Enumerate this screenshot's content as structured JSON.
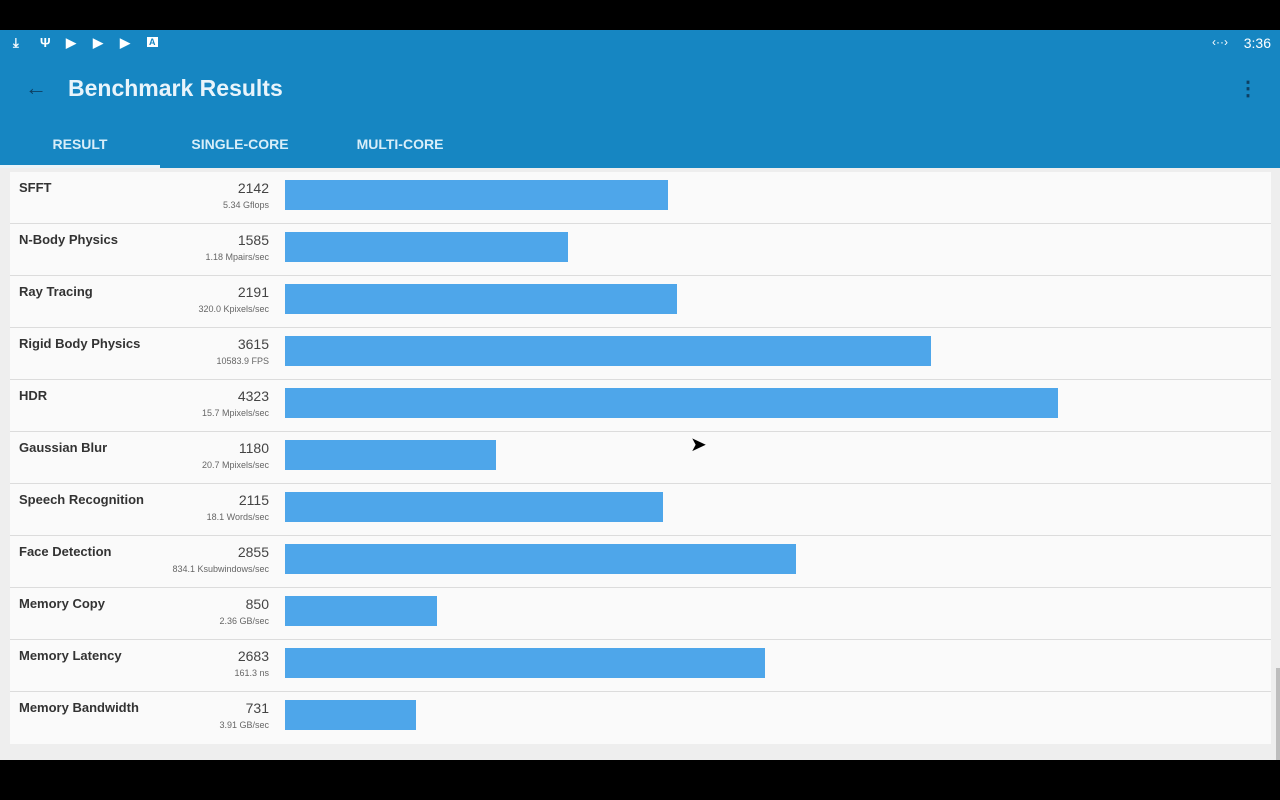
{
  "status_bar": {
    "icons": [
      "download-icon",
      "usb-icon",
      "play-store-icon",
      "play-store-icon",
      "play-store-icon",
      "font-icon"
    ],
    "vpn_icon": "code-icon",
    "time": "3:36"
  },
  "app_bar": {
    "title": "Benchmark Results",
    "back_icon": "arrow-left-icon",
    "menu_icon": "more-vert-icon"
  },
  "tabs": [
    {
      "label": "RESULT",
      "active": true
    },
    {
      "label": "SINGLE-CORE",
      "active": false
    },
    {
      "label": "MULTI-CORE",
      "active": false
    }
  ],
  "colors": {
    "app_bar": "#1686c2",
    "bar": "#4ea6ea"
  },
  "chart_data": {
    "type": "bar",
    "orientation": "horizontal",
    "categories": [
      "SFFT",
      "N-Body Physics",
      "Ray Tracing",
      "Rigid Body Physics",
      "HDR",
      "Gaussian Blur",
      "Speech Recognition",
      "Face Detection",
      "Memory Copy",
      "Memory Latency",
      "Memory Bandwidth"
    ],
    "values": [
      2142,
      1585,
      2191,
      3615,
      4323,
      1180,
      2115,
      2855,
      850,
      2683,
      731
    ]
  },
  "results": [
    {
      "name": "SFFT",
      "score": "2142",
      "unit": "5.34 Gflops"
    },
    {
      "name": "N-Body Physics",
      "score": "1585",
      "unit": "1.18 Mpairs/sec"
    },
    {
      "name": "Ray Tracing",
      "score": "2191",
      "unit": "320.0 Kpixels/sec"
    },
    {
      "name": "Rigid Body Physics",
      "score": "3615",
      "unit": "10583.9 FPS"
    },
    {
      "name": "HDR",
      "score": "4323",
      "unit": "15.7 Mpixels/sec"
    },
    {
      "name": "Gaussian Blur",
      "score": "1180",
      "unit": "20.7 Mpixels/sec"
    },
    {
      "name": "Speech Recognition",
      "score": "2115",
      "unit": "18.1 Words/sec"
    },
    {
      "name": "Face Detection",
      "score": "2855",
      "unit": "834.1 Ksubwindows/sec"
    },
    {
      "name": "Memory Copy",
      "score": "850",
      "unit": "2.36 GB/sec"
    },
    {
      "name": "Memory Latency",
      "score": "2683",
      "unit": "161.3 ns"
    },
    {
      "name": "Memory Bandwidth",
      "score": "731",
      "unit": "3.91 GB/sec"
    }
  ]
}
